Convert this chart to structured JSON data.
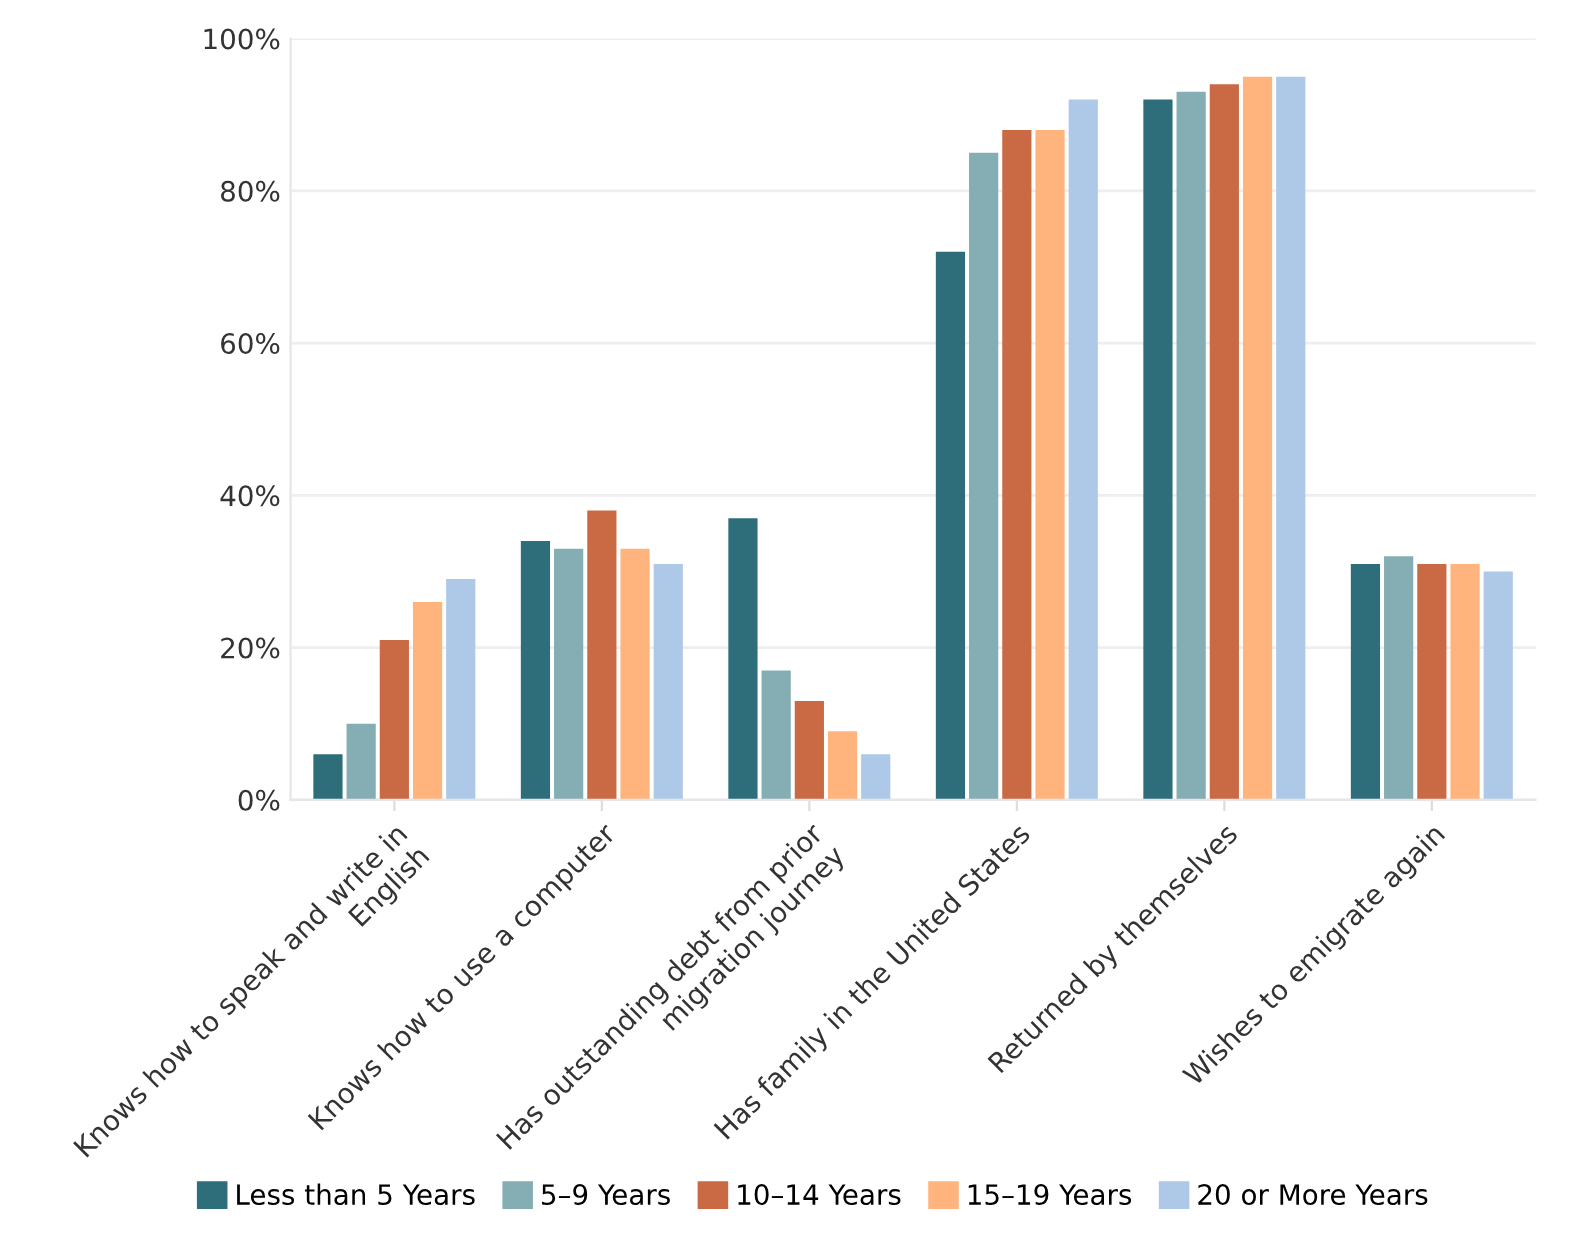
{
  "chart_data": {
    "type": "bar",
    "categories": [
      "Knows how to speak and write in\nEnglish",
      "Knows how to use a computer",
      "Has outstanding debt from prior\nmigration journey",
      "Has family in the United States",
      "Returned by themselves",
      "Wishes to emigrate again"
    ],
    "series": [
      {
        "name": "Less than 5 Years",
        "color": "#2e6e7a",
        "values": [
          6,
          34,
          37,
          72,
          92,
          31
        ]
      },
      {
        "name": "5–9 Years",
        "color": "#84aeb3",
        "values": [
          10,
          33,
          17,
          85,
          93,
          32
        ]
      },
      {
        "name": "10–14 Years",
        "color": "#c96a45",
        "values": [
          21,
          38,
          13,
          88,
          94,
          31
        ]
      },
      {
        "name": "15–19 Years",
        "color": "#ffb47d",
        "values": [
          26,
          33,
          9,
          88,
          95,
          31
        ]
      },
      {
        "name": "20 or More Years",
        "color": "#aec8e8",
        "values": [
          29,
          31,
          6,
          92,
          95,
          30
        ]
      }
    ],
    "ylim": [
      0,
      100
    ],
    "yticks": [
      {
        "value": 0,
        "label": "0%"
      },
      {
        "value": 20,
        "label": "20%"
      },
      {
        "value": 40,
        "label": "40%"
      },
      {
        "value": 60,
        "label": "60%"
      },
      {
        "value": 80,
        "label": "80%"
      },
      {
        "value": 100,
        "label": "100%"
      }
    ],
    "grid": "y",
    "legend": "bottom"
  }
}
